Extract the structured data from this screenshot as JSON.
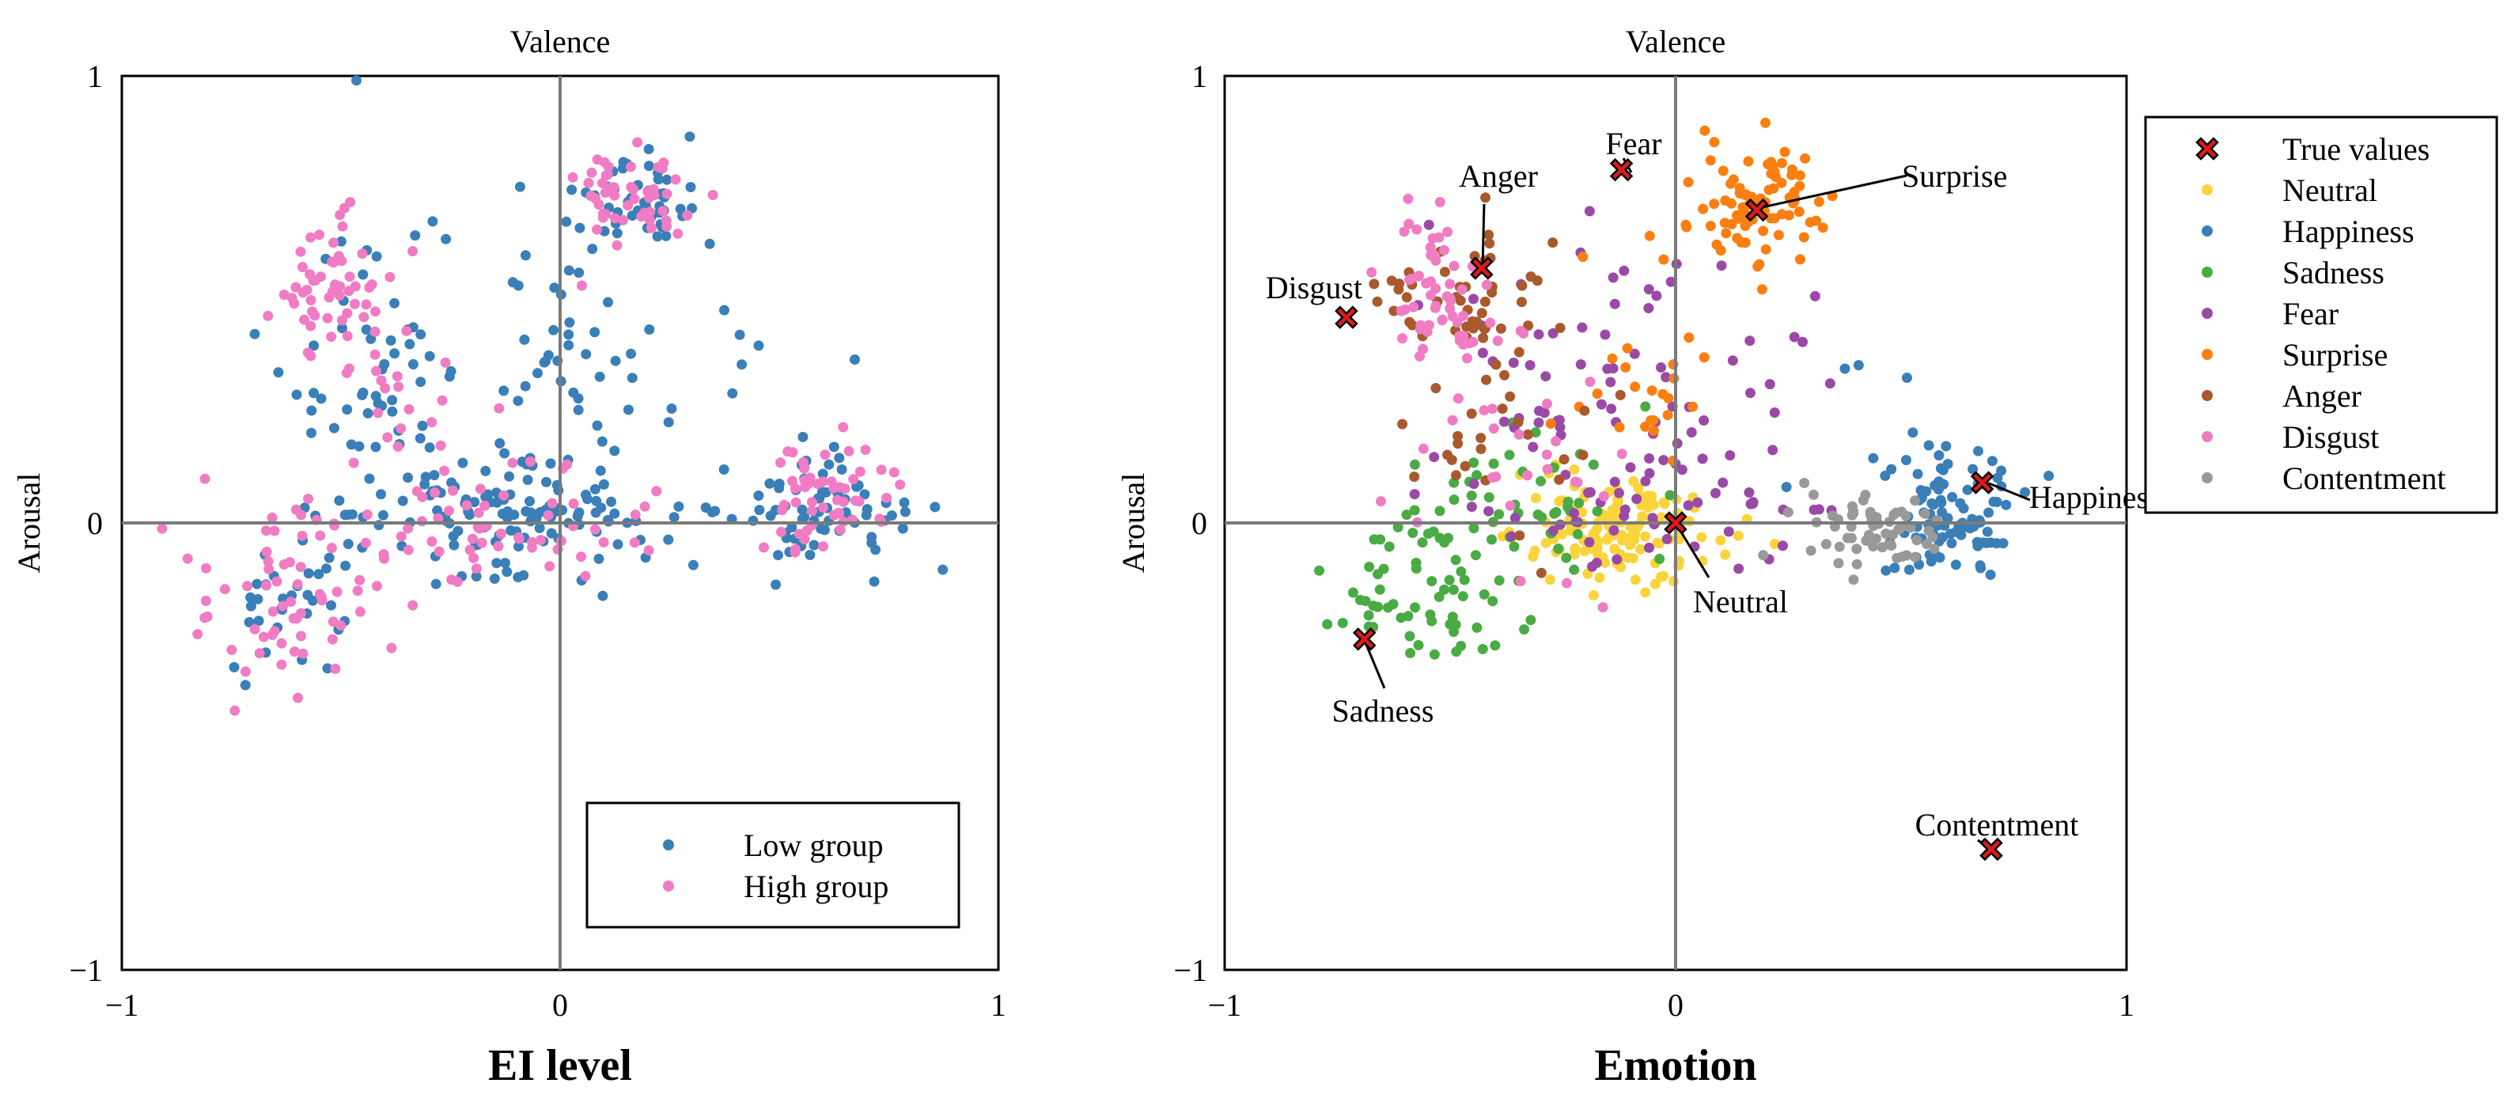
{
  "chart_data": [
    {
      "type": "scatter",
      "title": "Valence",
      "xlabel": "EI level",
      "ylabel": "Arousal",
      "xlim": [
        -1,
        1
      ],
      "ylim": [
        -1,
        1
      ],
      "xticks": [
        "−1",
        "0",
        "1"
      ],
      "yticks": [
        "1",
        "0",
        "−1"
      ],
      "legend": {
        "position": "bottom-right",
        "entries": [
          "Low group",
          "High group"
        ]
      },
      "series": [
        {
          "name": "Low group",
          "color": "#3a7fb8",
          "clusters": [
            {
              "cx": 0.18,
              "cy": 0.72,
              "sx": 0.07,
              "sy": 0.06,
              "n": 45
            },
            {
              "cx": -0.12,
              "cy": 0.0,
              "sx": 0.14,
              "sy": 0.06,
              "n": 110
            },
            {
              "cx": 0.58,
              "cy": 0.02,
              "sx": 0.1,
              "sy": 0.06,
              "n": 70
            },
            {
              "cx": -0.42,
              "cy": 0.3,
              "sx": 0.1,
              "sy": 0.2,
              "n": 70
            },
            {
              "cx": 0.0,
              "cy": 0.38,
              "sx": 0.09,
              "sy": 0.17,
              "n": 45
            },
            {
              "cx": -0.62,
              "cy": -0.18,
              "sx": 0.09,
              "sy": 0.09,
              "n": 30
            },
            {
              "cx": 0.3,
              "cy": 0.25,
              "sx": 0.2,
              "sy": 0.18,
              "n": 20
            }
          ]
        },
        {
          "name": "High group",
          "color": "#f07cc4",
          "clusters": [
            {
              "cx": 0.17,
              "cy": 0.74,
              "sx": 0.08,
              "sy": 0.06,
              "n": 50
            },
            {
              "cx": -0.52,
              "cy": 0.52,
              "sx": 0.06,
              "sy": 0.08,
              "n": 55
            },
            {
              "cx": -0.35,
              "cy": 0.22,
              "sx": 0.12,
              "sy": 0.17,
              "n": 35
            },
            {
              "cx": -0.65,
              "cy": -0.18,
              "sx": 0.1,
              "sy": 0.1,
              "n": 60
            },
            {
              "cx": -0.1,
              "cy": 0.0,
              "sx": 0.15,
              "sy": 0.06,
              "n": 50
            },
            {
              "cx": 0.6,
              "cy": 0.06,
              "sx": 0.07,
              "sy": 0.06,
              "n": 55
            }
          ]
        }
      ]
    },
    {
      "type": "scatter",
      "title": "Valence",
      "xlabel": "Emotion",
      "ylabel": "Arousal",
      "xlim": [
        -1,
        1
      ],
      "ylim": [
        -1,
        1
      ],
      "xticks": [
        "−1",
        "0",
        "1"
      ],
      "yticks": [
        "1",
        "0",
        "−1"
      ],
      "legend": {
        "position": "outside-right",
        "entries": [
          "True values",
          "Neutral",
          "Happiness",
          "Sadness",
          "Fear",
          "Surprise",
          "Anger",
          "Disgust",
          "Contentment"
        ]
      },
      "series": [
        {
          "name": "Neutral",
          "color": "#f9d43a",
          "clusters": [
            {
              "cx": -0.12,
              "cy": -0.02,
              "sx": 0.1,
              "sy": 0.06,
              "n": 140
            }
          ]
        },
        {
          "name": "Happiness",
          "color": "#3a7fb8",
          "clusters": [
            {
              "cx": 0.62,
              "cy": 0.02,
              "sx": 0.07,
              "sy": 0.06,
              "n": 90
            },
            {
              "cx": 0.45,
              "cy": 0.2,
              "sx": 0.12,
              "sy": 0.12,
              "n": 12
            }
          ]
        },
        {
          "name": "Sadness",
          "color": "#4aab44",
          "clusters": [
            {
              "cx": -0.55,
              "cy": -0.12,
              "sx": 0.12,
              "sy": 0.1,
              "n": 70
            },
            {
              "cx": -0.3,
              "cy": 0.05,
              "sx": 0.12,
              "sy": 0.1,
              "n": 40
            }
          ]
        },
        {
          "name": "Fear",
          "color": "#9a4aa6",
          "clusters": [
            {
              "cx": -0.15,
              "cy": 0.28,
              "sx": 0.2,
              "sy": 0.2,
              "n": 90
            },
            {
              "cx": 0.0,
              "cy": 0.02,
              "sx": 0.3,
              "sy": 0.05,
              "n": 30
            }
          ]
        },
        {
          "name": "Surprise",
          "color": "#fa7f10",
          "clusters": [
            {
              "cx": 0.18,
              "cy": 0.72,
              "sx": 0.07,
              "sy": 0.06,
              "n": 85
            },
            {
              "cx": -0.05,
              "cy": 0.32,
              "sx": 0.08,
              "sy": 0.12,
              "n": 25
            }
          ]
        },
        {
          "name": "Anger",
          "color": "#a85a2c",
          "clusters": [
            {
              "cx": -0.48,
              "cy": 0.52,
              "sx": 0.08,
              "sy": 0.08,
              "n": 45
            },
            {
              "cx": -0.35,
              "cy": 0.2,
              "sx": 0.15,
              "sy": 0.15,
              "n": 30
            }
          ]
        },
        {
          "name": "Disgust",
          "color": "#f07cc4",
          "clusters": [
            {
              "cx": -0.52,
              "cy": 0.5,
              "sx": 0.06,
              "sy": 0.1,
              "n": 60
            },
            {
              "cx": -0.35,
              "cy": 0.15,
              "sx": 0.14,
              "sy": 0.15,
              "n": 25
            }
          ]
        },
        {
          "name": "Contentment",
          "color": "#999999",
          "clusters": [
            {
              "cx": 0.45,
              "cy": -0.02,
              "sx": 0.09,
              "sy": 0.04,
              "n": 60
            }
          ]
        }
      ],
      "true_values": {
        "name": "True values",
        "color": "#dd1a1a",
        "points": [
          {
            "label": "Fear",
            "x": -0.12,
            "y": 0.79
          },
          {
            "label": "Anger",
            "x": -0.43,
            "y": 0.57
          },
          {
            "label": "Surprise",
            "x": 0.18,
            "y": 0.7
          },
          {
            "label": "Disgust",
            "x": -0.73,
            "y": 0.46
          },
          {
            "label": "Happiness",
            "x": 0.68,
            "y": 0.09
          },
          {
            "label": "Neutral",
            "x": 0.0,
            "y": 0.0
          },
          {
            "label": "Sadness",
            "x": -0.69,
            "y": -0.26
          },
          {
            "label": "Contentment",
            "x": 0.7,
            "y": -0.73
          }
        ]
      }
    }
  ]
}
